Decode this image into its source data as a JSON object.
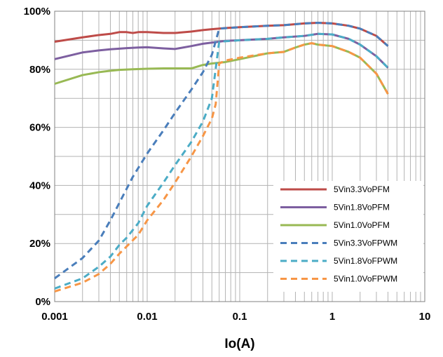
{
  "chart_data": {
    "type": "line",
    "title": "",
    "xlabel": "Io(A)",
    "ylabel": "",
    "x_scale": "log",
    "xlim": [
      0.001,
      10
    ],
    "ylim": [
      0,
      100
    ],
    "x_ticks": [
      "0.001",
      "0.01",
      "0.1",
      "1",
      "10"
    ],
    "y_ticks": [
      "0%",
      "20%",
      "40%",
      "60%",
      "80%",
      "100%"
    ],
    "grid": true,
    "legend_position": "bottom-right",
    "series": [
      {
        "name": "5Vin3.3VoPFM",
        "color": "#be4b48",
        "dash": "solid",
        "x": [
          0.001,
          0.002,
          0.003,
          0.004,
          0.005,
          0.006,
          0.007,
          0.008,
          0.01,
          0.015,
          0.02,
          0.03,
          0.04,
          0.05,
          0.07,
          0.1,
          0.2,
          0.3,
          0.5,
          0.7,
          1,
          1.5,
          2,
          3,
          4
        ],
        "y": [
          89.5,
          91,
          91.8,
          92.2,
          92.8,
          92.8,
          92.5,
          92.8,
          92.8,
          92.5,
          92.5,
          93,
          93.5,
          93.8,
          94.2,
          94.5,
          95,
          95.2,
          95.8,
          96,
          95.8,
          95,
          94,
          91.5,
          88
        ]
      },
      {
        "name": "5Vin1.8VoPFM",
        "color": "#7d5fa0",
        "dash": "solid",
        "x": [
          0.001,
          0.002,
          0.003,
          0.004,
          0.005,
          0.006,
          0.008,
          0.01,
          0.015,
          0.02,
          0.03,
          0.04,
          0.05,
          0.07,
          0.1,
          0.2,
          0.3,
          0.5,
          0.7,
          1,
          1.5,
          2,
          3,
          4
        ],
        "y": [
          83.5,
          85.8,
          86.5,
          86.9,
          87.1,
          87.3,
          87.5,
          87.6,
          87.2,
          87,
          88,
          88.8,
          89.2,
          89.8,
          90,
          90.5,
          91,
          91.5,
          92.2,
          92,
          90.5,
          88.5,
          84.5,
          80.5
        ]
      },
      {
        "name": "5Vin1.0VoPFM",
        "color": "#98b954",
        "dash": "solid",
        "x": [
          0.001,
          0.002,
          0.003,
          0.004,
          0.005,
          0.007,
          0.01,
          0.015,
          0.02,
          0.03,
          0.04,
          0.05,
          0.07,
          0.1,
          0.2,
          0.3,
          0.4,
          0.5,
          0.6,
          0.7,
          1,
          1.5,
          2,
          3,
          4
        ],
        "y": [
          75,
          78,
          79,
          79.5,
          79.8,
          80,
          80.2,
          80.3,
          80.3,
          80.3,
          81.5,
          82,
          82.5,
          83.5,
          85.5,
          86,
          87.5,
          88.5,
          89,
          88.5,
          88,
          86,
          84,
          78.5,
          71.5
        ]
      },
      {
        "name": "5Vin3.3VoFPWM",
        "color": "#4a7ebb",
        "dash": "dashed",
        "x": [
          0.001,
          0.002,
          0.003,
          0.004,
          0.005,
          0.007,
          0.01,
          0.015,
          0.02,
          0.03,
          0.04,
          0.05,
          0.06,
          0.1,
          0.2,
          0.3,
          0.5,
          0.7,
          1,
          1.5,
          2,
          3,
          4
        ],
        "y": [
          8,
          15,
          21,
          28,
          34,
          43,
          51,
          59,
          65,
          73,
          79,
          85,
          94,
          94.5,
          95,
          95.2,
          95.8,
          96,
          95.8,
          95,
          94,
          91.5,
          88
        ]
      },
      {
        "name": "5Vin1.8VoFPWM",
        "color": "#4bacc6",
        "dash": "dashed",
        "x": [
          0.001,
          0.002,
          0.003,
          0.004,
          0.005,
          0.006,
          0.008,
          0.01,
          0.015,
          0.02,
          0.03,
          0.04,
          0.05,
          0.06,
          0.1,
          0.2,
          0.3,
          0.5,
          0.7,
          1,
          1.5,
          2,
          3,
          4
        ],
        "y": [
          4.5,
          8,
          12,
          15.5,
          19.5,
          22,
          27,
          33,
          41,
          47,
          55,
          62,
          70,
          89.5,
          90,
          90.5,
          91,
          91.5,
          92.2,
          92,
          90.5,
          88.5,
          84.5,
          80.5
        ]
      },
      {
        "name": "5Vin1.0VoFPWM",
        "color": "#f79646",
        "dash": "dashed",
        "x": [
          0.001,
          0.002,
          0.003,
          0.004,
          0.005,
          0.006,
          0.008,
          0.01,
          0.015,
          0.02,
          0.03,
          0.04,
          0.05,
          0.055,
          0.06,
          0.07,
          0.1,
          0.2,
          0.3,
          0.4,
          0.5,
          0.6,
          0.7,
          1,
          1.5,
          2,
          3,
          4
        ],
        "y": [
          3.5,
          6.5,
          9.5,
          13,
          16.5,
          19,
          23,
          28,
          35,
          41,
          50,
          57,
          63,
          68,
          82,
          83,
          84,
          85.5,
          86,
          87.5,
          88.5,
          89,
          88.5,
          88,
          86,
          84,
          78.5,
          71.5
        ]
      }
    ]
  }
}
